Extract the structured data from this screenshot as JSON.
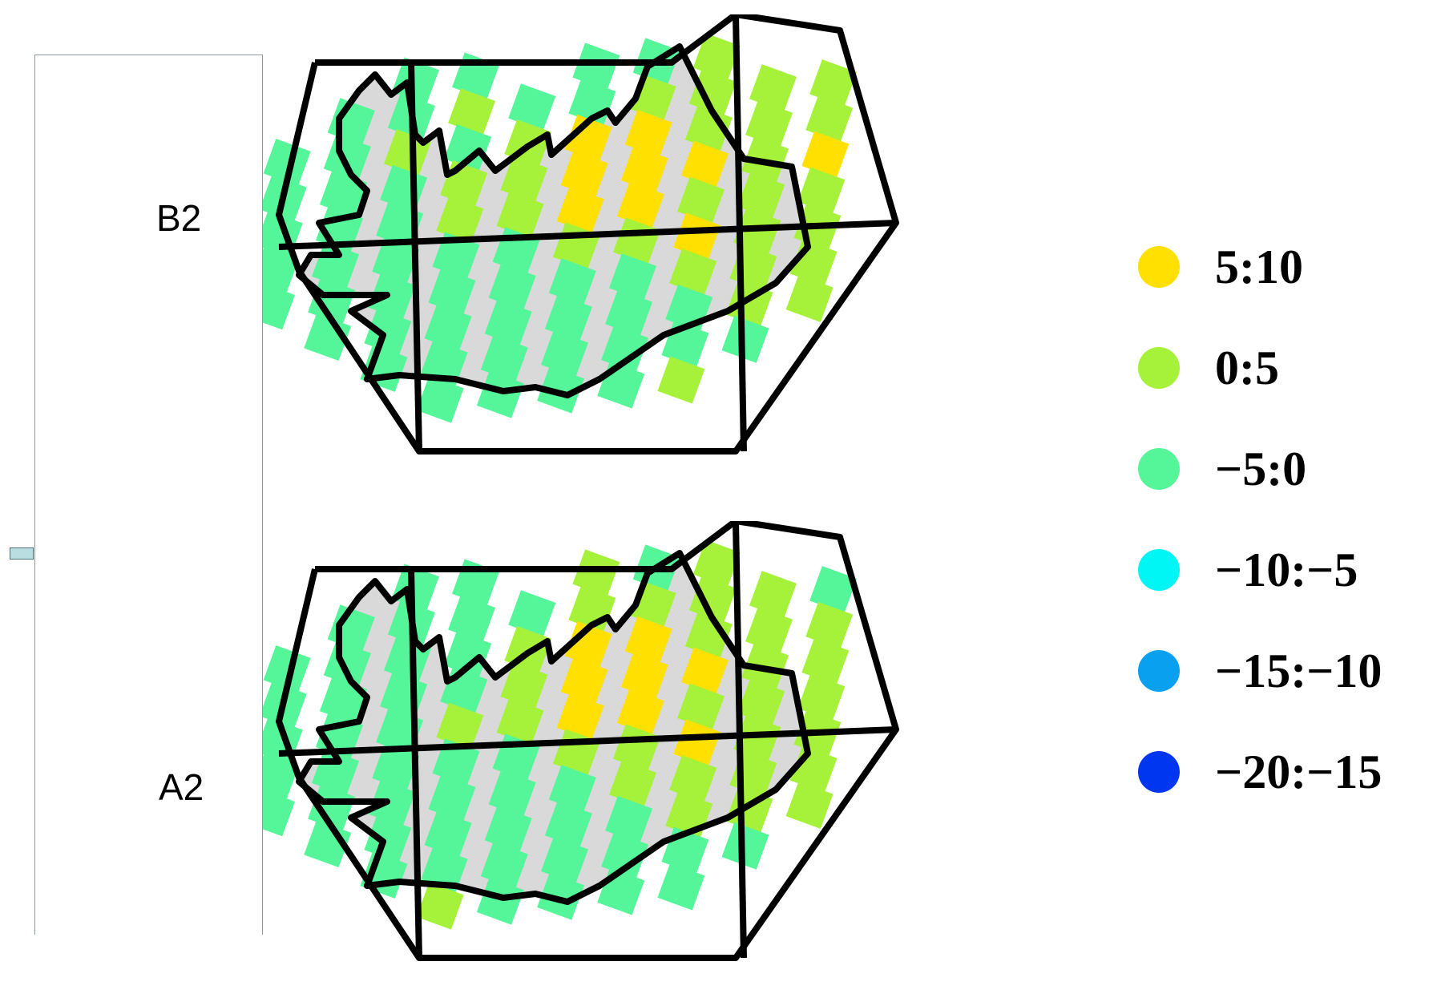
{
  "panels": [
    {
      "label": "B2"
    },
    {
      "label": "A2"
    }
  ],
  "legend": [
    {
      "label": "5:10",
      "color": "#ffe000"
    },
    {
      "label": "0:5",
      "color": "#a6f23a"
    },
    {
      "label": "−5:0",
      "color": "#55f59a"
    },
    {
      "label": "−10:−5",
      "color": "#00f5f5"
    },
    {
      "label": "−15:−10",
      "color": "#0aa0f0"
    },
    {
      "label": "−20:−15",
      "color": "#0036f0"
    }
  ],
  "map_colors": {
    "land": "#d9d9d9",
    "outline": "#000000",
    "class_high": "#ffe000",
    "class_mid": "#a6f23a",
    "class_low": "#55f59a"
  },
  "grid_b2": [
    "..LL.LLM..",
    ".LLMLLMMMM",
    "LLMLMHHMMM",
    "LLLMMHHHMH",
    "LLLMMHHMMM",
    "LLLLLMMHMM",
    "LLLLLLLMMM",
    ".LLLLLLLMM",
    "..LLLLLLL.",
    "...LLLLM.."
  ],
  "grid_a2": [
    "..LL.MLM..",
    ".LLLLMMMML",
    "LLLLMHHMMM",
    "LLLLMHHHMM",
    "LLLMMHHMMM",
    "LLLLLMMHMM",
    "LLLLLLMMMM",
    ".LLLLLLMMM",
    "..LLLLLLL.",
    "...MLLLL.."
  ]
}
